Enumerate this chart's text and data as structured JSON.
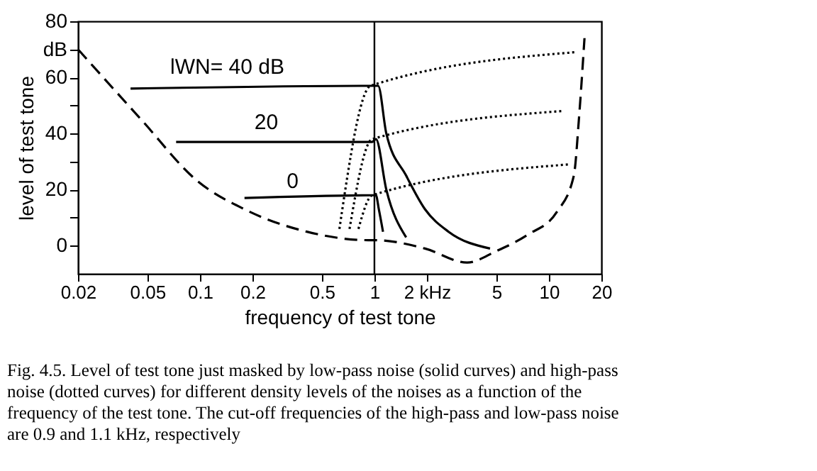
{
  "chart_data": {
    "type": "line",
    "xlabel": "frequency of test tone",
    "ylabel": "level of test tone",
    "log": "x",
    "grid": false,
    "xlim": [
      0.02,
      20
    ],
    "xticks": [
      0.02,
      0.05,
      0.1,
      0.2,
      0.5,
      1,
      {
        "value": 2,
        "label": "2 kHz"
      },
      5,
      10,
      20
    ],
    "ylim": [
      -10,
      80
    ],
    "yticks": [
      0,
      {
        "value": 10,
        "label": null
      },
      20,
      {
        "value": 30,
        "label": null
      },
      40,
      {
        "value": 50,
        "label": null
      },
      60,
      {
        "value": 70,
        "label": "dB"
      },
      80
    ],
    "ref_lines": [
      {
        "axis": "x",
        "value": 1,
        "color": "#000000"
      }
    ],
    "series": [
      {
        "color": "#000000",
        "line_style": "dashed",
        "x": [
          0.02,
          0.046,
          0.097,
          0.18,
          0.41,
          0.92,
          1.0,
          1.95,
          3.4,
          4.96,
          7.6,
          11.1,
          13.9,
          14.9,
          16
        ],
        "values": [
          70,
          45,
          23,
          13,
          5,
          2,
          2,
          -1,
          -6,
          -2,
          4,
          12,
          25,
          46,
          74
        ]
      },
      {
        "color": "#000000",
        "line_style": "solid",
        "x": [
          0.04,
          0.95,
          1.05,
          1.17,
          1.52,
          1.95,
          2.66,
          4.6
        ],
        "values": [
          56,
          57,
          57,
          40,
          25,
          13,
          5,
          -1
        ]
      },
      {
        "color": "#000000",
        "line_style": "solid",
        "x": [
          0.073,
          0.97,
          1.02,
          1.17,
          1.52
        ],
        "values": [
          37,
          37,
          38,
          20,
          3
        ]
      },
      {
        "color": "#000000",
        "line_style": "solid",
        "x": [
          0.18,
          0.97,
          1.02,
          1.06,
          1.12
        ],
        "values": [
          17,
          18,
          18,
          13,
          5
        ]
      },
      {
        "color": "#000000",
        "line_style": "dotted",
        "x": [
          0.63,
          0.95,
          14.3
        ],
        "values": [
          6,
          57,
          69
        ]
      },
      {
        "color": "#000000",
        "line_style": "dotted",
        "x": [
          0.72,
          0.97,
          11.9
        ],
        "values": [
          6,
          38,
          48
        ]
      },
      {
        "color": "#000000",
        "line_style": "dotted",
        "x": [
          0.81,
          0.97,
          13.1
        ],
        "values": [
          6,
          18,
          29
        ]
      }
    ],
    "annotations": [
      "lWN= 40 dB",
      {
        "text": "20",
        "x": 0.24,
        "y": 40
      },
      {
        "text": "0",
        "x": 0.34,
        "y": 19
      },
      "Fig. 4.5. Level of test tone just masked by low-pass noise (solid curves) and high-pass noise (dotted curves) for different density levels of the noises as a function of the frequency of the test tone. The cut-off frequencies of the high-pass and low-pass noise are 0.9 and 1.1 kHz, respectively"
    ]
  }
}
